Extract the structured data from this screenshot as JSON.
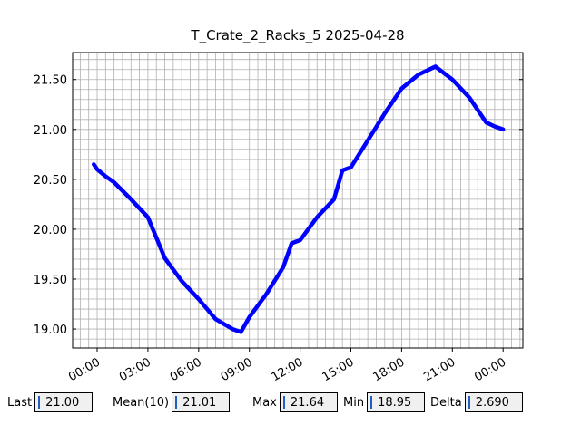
{
  "chart_data": {
    "type": "line",
    "title": "T_Crate_2_Racks_5 2025-04-28",
    "x": [
      -0.2,
      0,
      0.5,
      1,
      2,
      3,
      4,
      5,
      6,
      7,
      7.5,
      8,
      8.5,
      9,
      10,
      11,
      11.5,
      12,
      13,
      14,
      14.5,
      15,
      16,
      17,
      18,
      19,
      20,
      21,
      22,
      23,
      23.5,
      24
    ],
    "series": [
      {
        "name": "T_Crate_2_Racks_5",
        "color": "#0000ff",
        "values": [
          20.65,
          20.6,
          20.53,
          20.47,
          20.3,
          20.12,
          19.71,
          19.48,
          19.3,
          19.1,
          19.05,
          19.0,
          18.97,
          19.12,
          19.35,
          19.62,
          19.86,
          19.89,
          20.12,
          20.3,
          20.59,
          20.62,
          20.89,
          21.16,
          21.41,
          21.55,
          21.63,
          21.5,
          21.32,
          21.07,
          21.03,
          21.0
        ]
      }
    ],
    "xlim": [
      -1.45,
      25.17
    ],
    "ylim": [
      18.81,
      21.77
    ],
    "xticks": [
      {
        "value": 0,
        "label": "00:00"
      },
      {
        "value": 3,
        "label": "03:00"
      },
      {
        "value": 6,
        "label": "06:00"
      },
      {
        "value": 9,
        "label": "09:00"
      },
      {
        "value": 12,
        "label": "12:00"
      },
      {
        "value": 15,
        "label": "15:00"
      },
      {
        "value": 18,
        "label": "18:00"
      },
      {
        "value": 21,
        "label": "21:00"
      },
      {
        "value": 24,
        "label": "00:00"
      }
    ],
    "yticks": [
      {
        "value": 19,
        "label": "19.00"
      },
      {
        "value": 19.5,
        "label": "19.50"
      },
      {
        "value": 20,
        "label": "20.00"
      },
      {
        "value": 20.5,
        "label": "20.50"
      },
      {
        "value": 21,
        "label": "21.00"
      },
      {
        "value": 21.5,
        "label": "21.50"
      }
    ],
    "grid": true,
    "xminor_step": 0.5,
    "yminor_step": 0.1
  },
  "stats": [
    {
      "label": "Last",
      "value": "21.00"
    },
    {
      "label": "Mean(10)",
      "value": "21.01"
    },
    {
      "label": "Max",
      "value": "21.64"
    },
    {
      "label": "Min",
      "value": "18.95"
    },
    {
      "label": "Delta",
      "value": "2.690"
    }
  ]
}
